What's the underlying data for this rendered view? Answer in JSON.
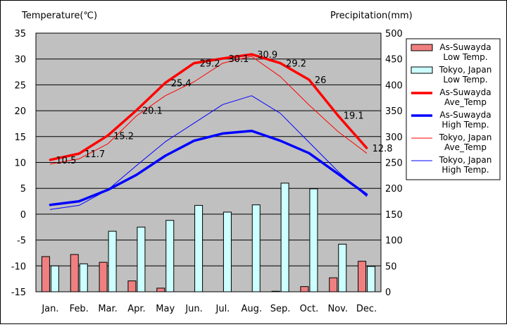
{
  "chart_data": {
    "type": "line",
    "categories": [
      "Jan.",
      "Feb.",
      "Mar.",
      "Apr.",
      "May",
      "Jun.",
      "Jul.",
      "Aug.",
      "Sep.",
      "Oct.",
      "Nov.",
      "Dec."
    ],
    "y_left": {
      "label": "Temperature(℃)",
      "min": -15,
      "max": 35,
      "ticks": [
        35,
        30,
        25,
        20,
        15,
        10,
        5,
        0,
        -5,
        -10,
        -15
      ]
    },
    "y_right": {
      "label": "Precipitation(mm)",
      "min": 0,
      "max": 500,
      "ticks": [
        500,
        450,
        400,
        350,
        300,
        250,
        200,
        150,
        100,
        50,
        0
      ]
    },
    "bar_series": [
      {
        "name": "As-Suwayda\nLow Temp.",
        "color": "#f08080",
        "values": [
          68,
          72,
          57,
          21,
          7,
          0,
          0,
          0,
          1,
          10,
          27,
          59
        ]
      },
      {
        "name": "Tokyo, Japan\nLow Temp.",
        "color": "#ccffff",
        "values": [
          50,
          54,
          117,
          125,
          138,
          167,
          154,
          168,
          210,
          199,
          92,
          49
        ]
      }
    ],
    "line_series": [
      {
        "name": "As-Suwayda\nAve_Temp",
        "color": "#ff0000",
        "width": 3.5,
        "values": [
          10.5,
          11.7,
          15.2,
          20.1,
          25.4,
          29.2,
          30.1,
          30.9,
          29.2,
          26,
          19.1,
          12.8
        ],
        "labels": [
          "10.5",
          "11.7",
          "15.2",
          "20.1",
          "25.4",
          "29.2",
          "30.1",
          "30.9",
          "29.2",
          "26",
          "19.1",
          "12.8"
        ]
      },
      {
        "name": "As-Suwayda\nHigh Temp.",
        "color": "#0000ff",
        "width": 3.5,
        "values": [
          1.8,
          2.5,
          4.7,
          7.6,
          11.3,
          14.2,
          15.6,
          16.1,
          14.2,
          11.8,
          7.8,
          3.8
        ]
      },
      {
        "name": "Tokyo, Japan\nAve_Temp",
        "color": "#ff0000",
        "width": 1,
        "values": [
          9.7,
          10.7,
          13.6,
          19.0,
          22.9,
          25.6,
          29.2,
          30.5,
          26.6,
          21.1,
          16.0,
          11.8
        ]
      },
      {
        "name": "Tokyo, Japan\nHigh Temp.",
        "color": "#0000ff",
        "width": 1,
        "values": [
          0.9,
          1.7,
          4.7,
          9.4,
          14.0,
          17.6,
          21.2,
          22.9,
          19.5,
          13.9,
          8.3,
          3.4
        ]
      }
    ],
    "legend": {
      "placement": "right"
    },
    "grid": true,
    "plot_background": "#c0c0c0"
  }
}
